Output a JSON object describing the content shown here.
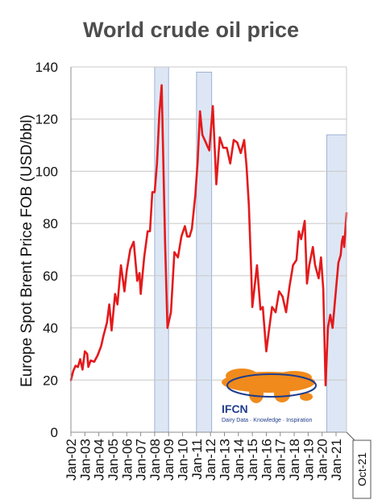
{
  "chart_data": {
    "type": "line",
    "title": "World crude oil price",
    "ylabel": "Europe Spot Brent Price FOB (USD/bbl)",
    "xlabel": "",
    "ylim": [
      0,
      140
    ],
    "yticks": [
      0,
      20,
      40,
      60,
      80,
      100,
      120,
      140
    ],
    "grid": "horizontal",
    "categories": [
      "Jan-02",
      "Jan-03",
      "Jan-04",
      "Jan-05",
      "Jan-06",
      "Jan-07",
      "Jan-08",
      "Jan-09",
      "Jan-10",
      "Jan-11",
      "Jan-12",
      "Jan-13",
      "Jan-14",
      "Jan-15",
      "Jan-16",
      "Jan-17",
      "Jan-18",
      "Jan-19",
      "Jan-20",
      "Jan-21"
    ],
    "end_label": "Oct-21",
    "highlight_periods": [
      {
        "start": "2008-01",
        "end": "2009-01",
        "top": 140
      },
      {
        "start": "2011-01",
        "end": "2012-02",
        "top": 138
      },
      {
        "start": "2020-05",
        "end": "2021-10",
        "top": 114
      }
    ],
    "series": [
      {
        "color": "#e31a1c",
        "points": [
          [
            "2002-01",
            20
          ],
          [
            "2002-03",
            23.5
          ],
          [
            "2002-05",
            25.5
          ],
          [
            "2002-07",
            25
          ],
          [
            "2002-09",
            28
          ],
          [
            "2002-11",
            24
          ],
          [
            "2003-01",
            31
          ],
          [
            "2003-03",
            30
          ],
          [
            "2003-04",
            25
          ],
          [
            "2003-06",
            27.5
          ],
          [
            "2003-09",
            27
          ],
          [
            "2003-12",
            29.5
          ],
          [
            "2004-03",
            33
          ],
          [
            "2004-05",
            37
          ],
          [
            "2004-08",
            42
          ],
          [
            "2004-10",
            49
          ],
          [
            "2004-12",
            39
          ],
          [
            "2005-03",
            53
          ],
          [
            "2005-05",
            49
          ],
          [
            "2005-08",
            64
          ],
          [
            "2005-11",
            54
          ],
          [
            "2006-01",
            62
          ],
          [
            "2006-04",
            70
          ],
          [
            "2006-07",
            73
          ],
          [
            "2006-10",
            58
          ],
          [
            "2006-12",
            61
          ],
          [
            "2007-01",
            53
          ],
          [
            "2007-04",
            67
          ],
          [
            "2007-07",
            77
          ],
          [
            "2007-09",
            77
          ],
          [
            "2007-11",
            92
          ],
          [
            "2008-01",
            92
          ],
          [
            "2008-03",
            103
          ],
          [
            "2008-05",
            122
          ],
          [
            "2008-07",
            133
          ],
          [
            "2008-08",
            113
          ],
          [
            "2008-10",
            72
          ],
          [
            "2008-12",
            40
          ],
          [
            "2009-03",
            46
          ],
          [
            "2009-06",
            69
          ],
          [
            "2009-09",
            67
          ],
          [
            "2009-12",
            75
          ],
          [
            "2010-03",
            79
          ],
          [
            "2010-05",
            75
          ],
          [
            "2010-07",
            75
          ],
          [
            "2010-09",
            78
          ],
          [
            "2010-12",
            91
          ],
          [
            "2011-02",
            104
          ],
          [
            "2011-04",
            123
          ],
          [
            "2011-06",
            114
          ],
          [
            "2011-09",
            111
          ],
          [
            "2011-12",
            108
          ],
          [
            "2012-03",
            125
          ],
          [
            "2012-06",
            95
          ],
          [
            "2012-09",
            113
          ],
          [
            "2012-12",
            109
          ],
          [
            "2013-03",
            109
          ],
          [
            "2013-06",
            103
          ],
          [
            "2013-09",
            112
          ],
          [
            "2013-12",
            111
          ],
          [
            "2014-03",
            107
          ],
          [
            "2014-06",
            112
          ],
          [
            "2014-08",
            102
          ],
          [
            "2014-10",
            87
          ],
          [
            "2014-12",
            62
          ],
          [
            "2015-01",
            48
          ],
          [
            "2015-05",
            64
          ],
          [
            "2015-08",
            47
          ],
          [
            "2015-10",
            48
          ],
          [
            "2016-01",
            31
          ],
          [
            "2016-03",
            38
          ],
          [
            "2016-06",
            48
          ],
          [
            "2016-09",
            46
          ],
          [
            "2016-12",
            54
          ],
          [
            "2017-03",
            52
          ],
          [
            "2017-06",
            46
          ],
          [
            "2017-09",
            56
          ],
          [
            "2017-12",
            64
          ],
          [
            "2018-03",
            66
          ],
          [
            "2018-05",
            77
          ],
          [
            "2018-07",
            74
          ],
          [
            "2018-10",
            81
          ],
          [
            "2018-12",
            57
          ],
          [
            "2019-02",
            64
          ],
          [
            "2019-05",
            71
          ],
          [
            "2019-07",
            64
          ],
          [
            "2019-10",
            59
          ],
          [
            "2019-12",
            67
          ],
          [
            "2020-02",
            55
          ],
          [
            "2020-04",
            18
          ],
          [
            "2020-06",
            40
          ],
          [
            "2020-08",
            45
          ],
          [
            "2020-10",
            40
          ],
          [
            "2021-01",
            55
          ],
          [
            "2021-03",
            65
          ],
          [
            "2021-05",
            68
          ],
          [
            "2021-06",
            73
          ],
          [
            "2021-07",
            75
          ],
          [
            "2021-08",
            71
          ],
          [
            "2021-10",
            84
          ]
        ]
      }
    ]
  },
  "logo": {
    "name": "IFCN",
    "tagline": "Dairy Data · Knowledge · Inspiration"
  },
  "colors": {
    "line": "#e31a1c",
    "highlight_fill": "#dde6f4",
    "highlight_stroke": "#9fb3d6",
    "grid": "#c8c8c8",
    "logo_map": "#f08a1c",
    "logo_text": "#1f3d8c"
  }
}
